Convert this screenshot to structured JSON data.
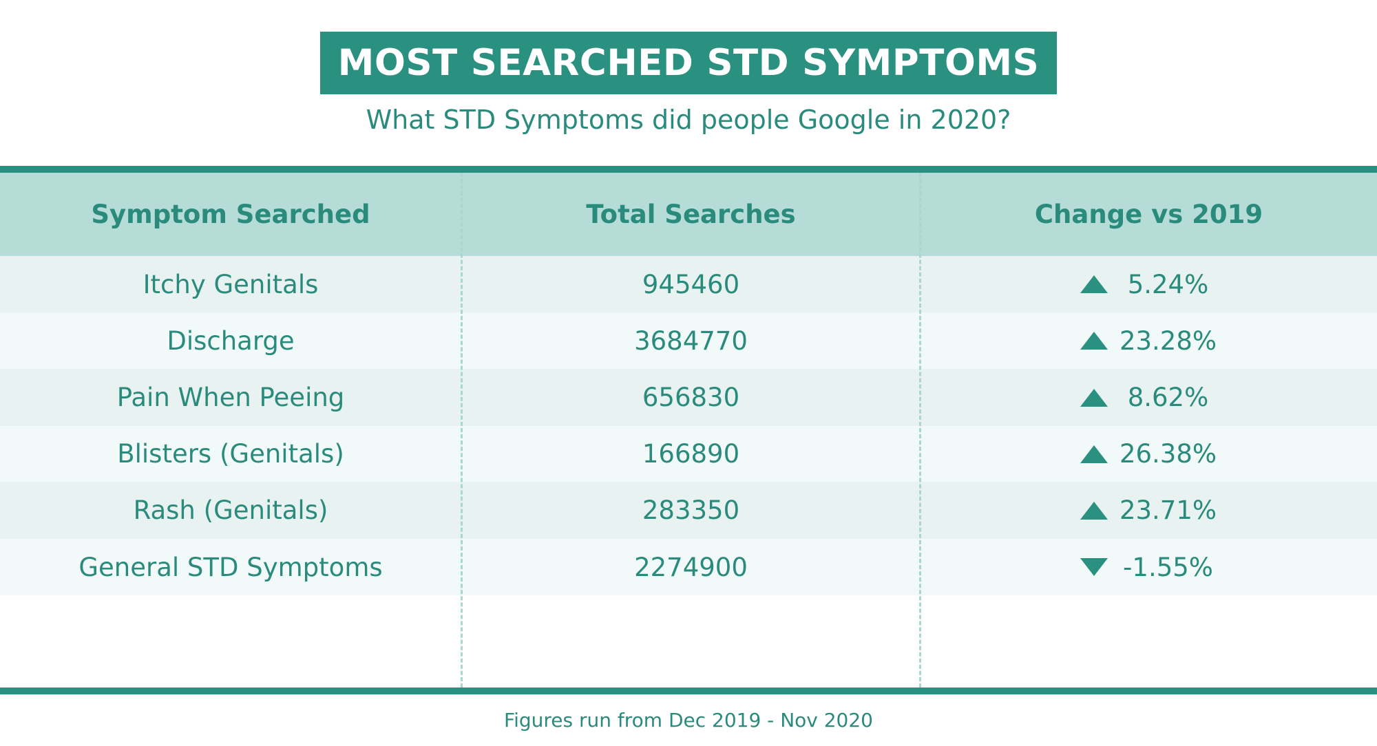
{
  "title": "MOST SEARCHED STD SYMPTOMS",
  "subtitle": "What STD Symptoms did people Google in 2020?",
  "footnote": "Figures run from Dec 2019 - Nov 2020",
  "colors": {
    "accent": "#2a9080",
    "header_bg": "#b6dcd7",
    "row_odd": "#e8f3f1",
    "row_even": "#f1faf8",
    "text": "#2a8a7c"
  },
  "chart_data": {
    "type": "table",
    "columns": [
      "Symptom Searched",
      "Total Searches",
      "Change vs 2019"
    ],
    "rows": [
      {
        "symptom": "Itchy Genitals",
        "searches": "945460",
        "change": "5.24%",
        "direction": "up",
        "direction_icon": "triangle-up-icon"
      },
      {
        "symptom": "Discharge",
        "searches": "3684770",
        "change": "23.28%",
        "direction": "up",
        "direction_icon": "triangle-up-icon"
      },
      {
        "symptom": "Pain When Peeing",
        "searches": "656830",
        "change": "8.62%",
        "direction": "up",
        "direction_icon": "triangle-up-icon"
      },
      {
        "symptom": "Blisters (Genitals)",
        "searches": "166890",
        "change": "26.38%",
        "direction": "up",
        "direction_icon": "triangle-up-icon"
      },
      {
        "symptom": "Rash (Genitals)",
        "searches": "283350",
        "change": "23.71%",
        "direction": "up",
        "direction_icon": "triangle-up-icon"
      },
      {
        "symptom": "General STD Symptoms",
        "searches": "2274900",
        "change": "-1.55%",
        "direction": "down",
        "direction_icon": "triangle-down-icon"
      }
    ]
  }
}
